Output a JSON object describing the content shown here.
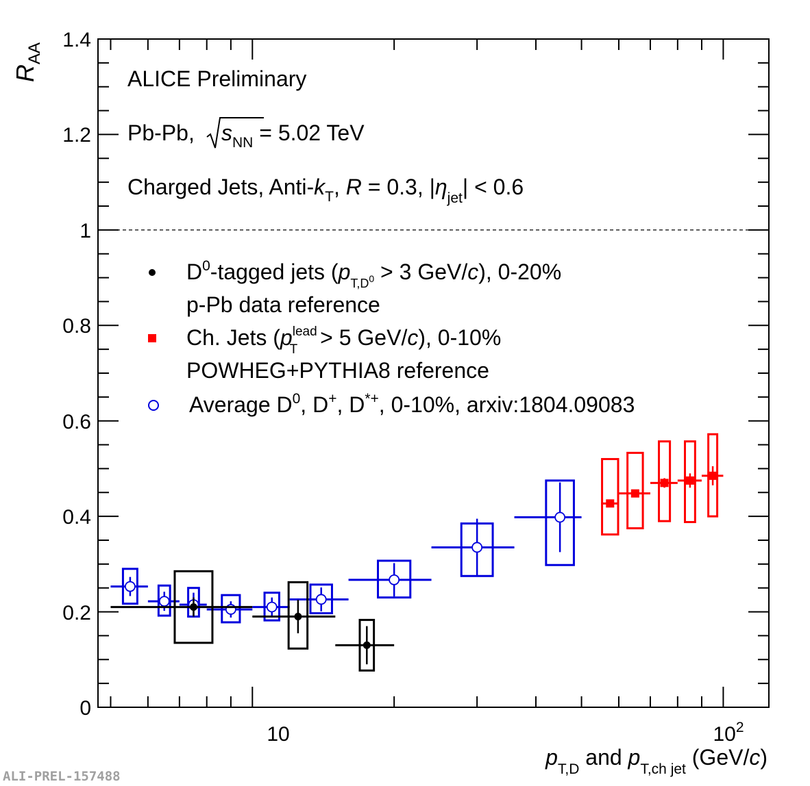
{
  "watermark": "ALI-PREL-157488",
  "annotations": {
    "line1": "ALICE Preliminary",
    "line2_pre": "Pb-Pb, ",
    "line2_s": "s",
    "line2_sub": "NN",
    "line2_post": " = 5.02 TeV",
    "line3_pre": "Charged Jets, Anti-",
    "line3_k": "k",
    "line3_ksub": "T",
    "line3_mid": ", ",
    "line3_R": "R",
    "line3_mid2": " = 0.3, |",
    "line3_eta": "η",
    "line3_etasub": "jet",
    "line3_post": "| < 0.6"
  },
  "axes": {
    "y_label_main": "R",
    "y_label_sub": "AA",
    "x_label": {
      "p1": "p",
      "p1_sub": "T,D",
      "and": " and ",
      "p2": "p",
      "p2_sub": "T,ch jet",
      "unit_pre": " (GeV/",
      "unit_c": "c",
      "unit_post": ")"
    },
    "y_ticks": [
      "0",
      "0.2",
      "0.4",
      "0.6",
      "0.8",
      "1",
      "1.2",
      "1.4"
    ],
    "x_tick_10": "10",
    "x_tick_100_base": "10",
    "x_tick_100_exp": "2"
  },
  "legend": {
    "d0_l1_pre": "D",
    "d0_l1_sup": "0",
    "d0_l1_mid": "-tagged jets (",
    "d0_l1_p": "p",
    "d0_l1_psub": "T,D",
    "d0_l1_psubsup": "0",
    "d0_l1_post1": " > 3 GeV/",
    "d0_l1_c": "c",
    "d0_l1_post2": "), 0-20%",
    "d0_l2": "p-Pb data reference",
    "ch_l1_pre": "Ch. Jets (",
    "ch_l1_p": "p",
    "ch_l1_psub": "T",
    "ch_l1_psup": "lead",
    "ch_l1_post1": " > 5 GeV/",
    "ch_l1_c": "c",
    "ch_l1_post2": "), 0-10%",
    "ch_l2": "POWHEG+PYTHIA8 reference",
    "avg_pre": "Average D",
    "avg_sup0": "0",
    "avg_mid1": ", D",
    "avg_supp": "+",
    "avg_mid2": ", D",
    "avg_supst": "*+",
    "avg_post": ", 0-10%, arxiv:1804.09083"
  },
  "colors": {
    "d0_jets": "#000000",
    "ch_jets": "#ff0000",
    "avg_d": "#0000dd"
  },
  "chart_data": {
    "type": "scatter",
    "x_scale": "log",
    "xlim": [
      4.7,
      125
    ],
    "ylim": [
      0,
      1.4
    ],
    "reference_line_y": 1.0,
    "series": [
      {
        "name": "D0-tagged jets, 0-20%",
        "marker": "filled-circle",
        "points": [
          {
            "x": 7.5,
            "y": 0.21,
            "xlo": 5,
            "xhi": 10,
            "stat": 0.02,
            "syslo": 0.135,
            "syshi": 0.285,
            "boxw": 0.08
          },
          {
            "x": 12.5,
            "y": 0.19,
            "xlo": 10,
            "xhi": 15,
            "stat": 0.035,
            "syslo": 0.123,
            "syshi": 0.262,
            "boxw": 0.04
          },
          {
            "x": 17.5,
            "y": 0.13,
            "xlo": 15,
            "xhi": 20,
            "stat": 0.04,
            "syslo": 0.077,
            "syshi": 0.183,
            "boxw": 0.03
          }
        ]
      },
      {
        "name": "Ch. Jets, 0-10%",
        "marker": "filled-square",
        "points": [
          {
            "x": 57.5,
            "y": 0.427,
            "xlo": 55,
            "xhi": 60,
            "stat": 0.005,
            "syslo": 0.362,
            "syshi": 0.52,
            "boxw": 0.0341
          },
          {
            "x": 65,
            "y": 0.448,
            "xlo": 60,
            "xhi": 70,
            "stat": 0.008,
            "syslo": 0.375,
            "syshi": 0.533,
            "boxw": 0.0327
          },
          {
            "x": 75,
            "y": 0.47,
            "xlo": 70,
            "xhi": 80,
            "stat": 0.01,
            "syslo": 0.39,
            "syshi": 0.557,
            "boxw": 0.0234
          },
          {
            "x": 85,
            "y": 0.475,
            "xlo": 80,
            "xhi": 90,
            "stat": 0.015,
            "syslo": 0.388,
            "syshi": 0.557,
            "boxw": 0.0216
          },
          {
            "x": 95,
            "y": 0.485,
            "xlo": 90,
            "xhi": 100,
            "stat": 0.02,
            "syslo": 0.4,
            "syshi": 0.572,
            "boxw": 0.0189
          }
        ]
      },
      {
        "name": "Average D0, D+, D*+, 0-10%",
        "marker": "open-circle",
        "points": [
          {
            "x": 5.5,
            "y": 0.253,
            "xlo": 5,
            "xhi": 6,
            "stat": 0.02,
            "syslo": 0.217,
            "syshi": 0.29,
            "boxw": 0.0305
          },
          {
            "x": 6.5,
            "y": 0.222,
            "xlo": 6,
            "xhi": 7,
            "stat": 0.02,
            "syslo": 0.192,
            "syshi": 0.255,
            "boxw": 0.0244
          },
          {
            "x": 7.5,
            "y": 0.215,
            "xlo": 7,
            "xhi": 8,
            "stat": 0.025,
            "syslo": 0.19,
            "syshi": 0.25,
            "boxw": 0.0229
          },
          {
            "x": 9,
            "y": 0.205,
            "xlo": 8,
            "xhi": 10,
            "stat": 0.017,
            "syslo": 0.178,
            "syshi": 0.235,
            "boxw": 0.0381
          },
          {
            "x": 11,
            "y": 0.21,
            "xlo": 10,
            "xhi": 12,
            "stat": 0.02,
            "syslo": 0.182,
            "syshi": 0.24,
            "boxw": 0.0312
          },
          {
            "x": 14,
            "y": 0.226,
            "xlo": 12,
            "xhi": 16,
            "stat": 0.025,
            "syslo": 0.197,
            "syshi": 0.257,
            "boxw": 0.0458
          },
          {
            "x": 20,
            "y": 0.267,
            "xlo": 16,
            "xhi": 24,
            "stat": 0.035,
            "syslo": 0.23,
            "syshi": 0.307,
            "boxw": 0.0688
          },
          {
            "x": 30,
            "y": 0.335,
            "xlo": 24,
            "xhi": 36,
            "stat": 0.06,
            "syslo": 0.275,
            "syshi": 0.385,
            "boxw": 0.0667
          },
          {
            "x": 45,
            "y": 0.398,
            "xlo": 36,
            "xhi": 50,
            "stat": 0.073,
            "syslo": 0.298,
            "syshi": 0.475,
            "boxw": 0.0591
          }
        ]
      }
    ]
  }
}
